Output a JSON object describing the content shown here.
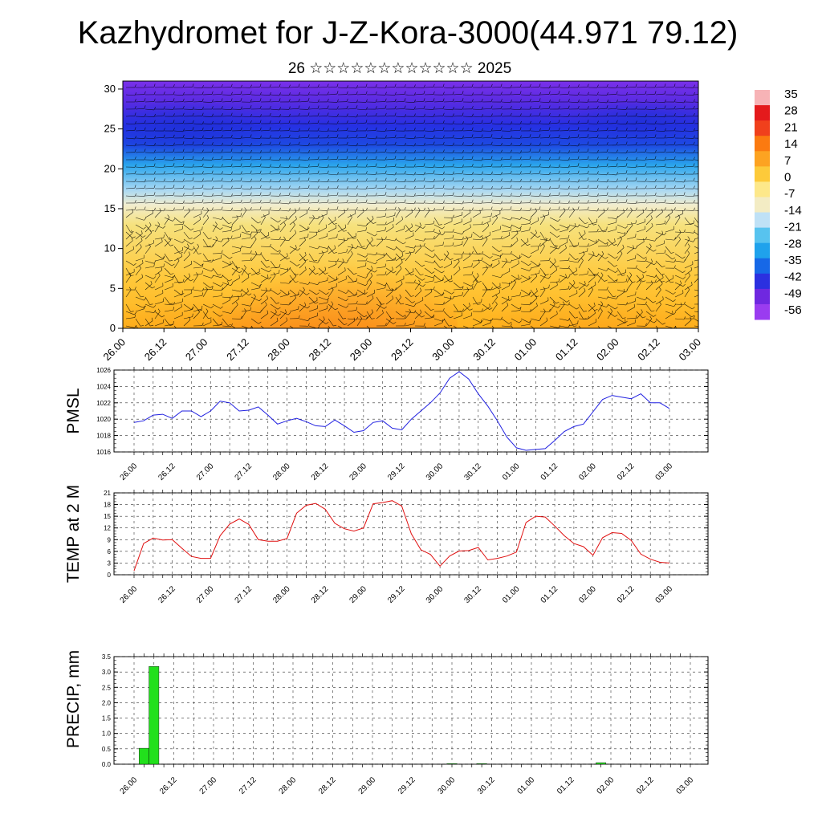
{
  "header": {
    "title": "Kazhydromet for J-Z-Kora-3000(44.971 79.12)",
    "subtitle": "26 ☆☆☆☆☆☆☆☆☆☆☆☆ 2025"
  },
  "colors": {
    "pmsl_line": "#1f1fe0",
    "temp_line": "#e01010",
    "precip_bar": "#22e01c",
    "grid": "#222222"
  },
  "time_labels": [
    "26.00",
    "26.12",
    "27.00",
    "27.12",
    "28.00",
    "28.12",
    "29.00",
    "29.12",
    "30.00",
    "30.12",
    "01.00",
    "01.12",
    "02.00",
    "02.12",
    "03.00"
  ],
  "chart_data": [
    {
      "type": "heatmap",
      "name": "upper-air-section",
      "x": [
        "26.00",
        "26.12",
        "27.00",
        "27.12",
        "28.00",
        "28.12",
        "29.00",
        "29.12",
        "30.00",
        "30.12",
        "01.00",
        "01.12",
        "02.00",
        "02.12",
        "03.00"
      ],
      "ylim": [
        0,
        31
      ],
      "yticks": [
        0,
        5,
        10,
        15,
        20,
        25,
        30
      ],
      "colorbar": {
        "levels": [
          35,
          28,
          21,
          14,
          7,
          0,
          -7,
          -14,
          -21,
          -28,
          -35,
          -42,
          -49,
          -56
        ],
        "colors": [
          "#f7b3b6",
          "#e41a1c",
          "#f0401c",
          "#fb7a10",
          "#fda321",
          "#fdca3a",
          "#fde88a",
          "#f3ecc4",
          "#bfe1f6",
          "#57c3ef",
          "#1fa2ec",
          "#1668e7",
          "#2b30e0",
          "#6f28e0",
          "#9a3cf0"
        ]
      },
      "has_wind_barbs": true
    },
    {
      "type": "line",
      "name": "PMSL",
      "ylabel": "PMSL",
      "ylim": [
        1016,
        1026
      ],
      "yticks": [
        1016,
        1018,
        1020,
        1022,
        1024,
        1026
      ],
      "x_start": "26.00",
      "step_hours": 3,
      "series": [
        {
          "values": [
            1019.6,
            1019.8,
            1020.5,
            1020.6,
            1020.1,
            1021.0,
            1021.0,
            1020.3,
            1021.0,
            1022.2,
            1022.0,
            1021.0,
            1021.1,
            1021.5,
            1020.5,
            1019.4,
            1019.8,
            1020.1,
            1019.7,
            1019.2,
            1019.1,
            1019.9,
            1019.2,
            1018.4,
            1018.6,
            1019.6,
            1019.8,
            1018.9,
            1018.7,
            1020.0,
            1021.0,
            1022.0,
            1023.2,
            1025.0,
            1025.8,
            1024.9,
            1023.1,
            1021.6,
            1019.8,
            1017.8,
            1016.5,
            1016.2,
            1016.3,
            1016.4,
            1017.4,
            1018.5,
            1019.1,
            1019.4,
            1020.9,
            1022.4,
            1022.9,
            1022.7,
            1022.5,
            1023.1,
            1022.0,
            1022.0,
            1021.3
          ]
        }
      ]
    },
    {
      "type": "line",
      "name": "TEMP at 2 M",
      "ylabel": "TEMP at 2 M",
      "ylim": [
        0,
        21
      ],
      "yticks": [
        0,
        3,
        6,
        9,
        12,
        15,
        18,
        21
      ],
      "x_start": "26.00",
      "step_hours": 3,
      "series": [
        {
          "values": [
            1.0,
            8.0,
            9.4,
            8.9,
            9.0,
            6.8,
            4.7,
            4.2,
            4.2,
            10.0,
            13.0,
            14.3,
            12.9,
            9.0,
            8.6,
            8.6,
            9.3,
            15.8,
            17.8,
            18.3,
            16.8,
            13.2,
            11.8,
            11.2,
            12.0,
            18.2,
            18.5,
            19.0,
            17.6,
            10.5,
            6.4,
            5.2,
            2.2,
            4.8,
            6.1,
            6.2,
            7.0,
            3.8,
            4.2,
            4.8,
            5.8,
            13.4,
            15.0,
            14.8,
            12.5,
            10.0,
            8.0,
            7.2,
            5.0,
            9.5,
            10.8,
            10.6,
            8.8,
            5.3,
            4.0,
            3.2,
            3.0
          ]
        }
      ]
    },
    {
      "type": "bar",
      "name": "PRECIP, mm",
      "ylabel": "PRECIP, mm",
      "ylim": [
        0,
        3.5
      ],
      "yticks": [
        "0.0",
        "0.5",
        "1.0",
        "1.5",
        "2.0",
        "2.5",
        "3.0",
        "3.5"
      ],
      "x_start": "26.00",
      "step_hours": 3,
      "values": [
        0,
        0.52,
        3.18,
        0,
        0,
        0,
        0,
        0,
        0,
        0,
        0,
        0,
        0,
        0,
        0,
        0,
        0,
        0,
        0,
        0,
        0,
        0,
        0.01,
        0,
        0,
        0,
        0,
        0,
        0,
        0,
        0,
        0,
        0.02,
        0,
        0,
        0.02,
        0,
        0,
        0,
        0,
        0,
        0,
        0,
        0,
        0,
        0,
        0,
        0.05,
        0,
        0,
        0,
        0,
        0,
        0,
        0,
        0,
        0
      ]
    }
  ]
}
